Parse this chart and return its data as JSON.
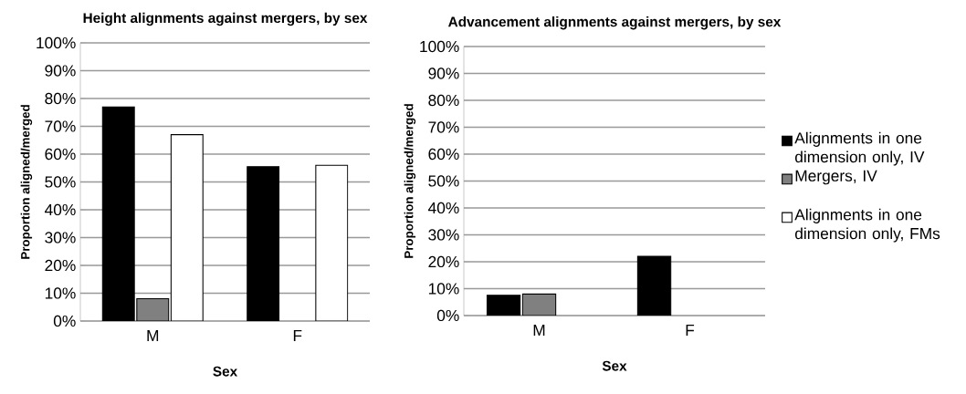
{
  "chart_data": [
    {
      "type": "bar",
      "title": "Height alignments against mergers, by sex",
      "xlabel": "Sex",
      "ylabel": "Proportion aligned/merged",
      "categories": [
        "M",
        "F"
      ],
      "series": [
        {
          "color": "#000000",
          "values": [
            77,
            55.5
          ]
        },
        {
          "color": "#808080",
          "values": [
            8,
            null
          ]
        },
        {
          "color": "#ffffff",
          "values": [
            67,
            56
          ]
        }
      ],
      "ylim": [
        0,
        100
      ],
      "yticks": [
        {
          "value": 0,
          "label": "0%"
        },
        {
          "value": 10,
          "label": "10%"
        },
        {
          "value": 20,
          "label": "20%"
        },
        {
          "value": 30,
          "label": "30%"
        },
        {
          "value": 40,
          "label": "40%"
        },
        {
          "value": 50,
          "label": "50%"
        },
        {
          "value": 60,
          "label": "60%"
        },
        {
          "value": 70,
          "label": "70%"
        },
        {
          "value": 80,
          "label": "80%"
        },
        {
          "value": 90,
          "label": "90%"
        },
        {
          "value": 100,
          "label": "100%"
        }
      ],
      "grid": "y"
    },
    {
      "type": "bar",
      "title": "Advancement alignments against mergers, by sex",
      "xlabel": "Sex",
      "ylabel": "Proportion aligned/merged",
      "categories": [
        "M",
        "F"
      ],
      "series": [
        {
          "name": "Alignments in one dimension only, IV",
          "color": "#000000",
          "values": [
            7.5,
            22
          ]
        },
        {
          "name": "Mergers, IV",
          "color": "#808080",
          "values": [
            8,
            null
          ]
        },
        {
          "name": "Alignments in one dimension only, FMs",
          "color": "#ffffff",
          "values": [
            null,
            null
          ]
        }
      ],
      "ylim": [
        0,
        100
      ],
      "yticks": [
        {
          "value": 0,
          "label": "0%"
        },
        {
          "value": 10,
          "label": "10%"
        },
        {
          "value": 20,
          "label": "20%"
        },
        {
          "value": 30,
          "label": "30%"
        },
        {
          "value": 40,
          "label": "40%"
        },
        {
          "value": 50,
          "label": "50%"
        },
        {
          "value": 60,
          "label": "60%"
        },
        {
          "value": 70,
          "label": "70%"
        },
        {
          "value": 80,
          "label": "80%"
        },
        {
          "value": 90,
          "label": "90%"
        },
        {
          "value": 100,
          "label": "100%"
        }
      ],
      "grid": "y",
      "legend": "right"
    }
  ]
}
